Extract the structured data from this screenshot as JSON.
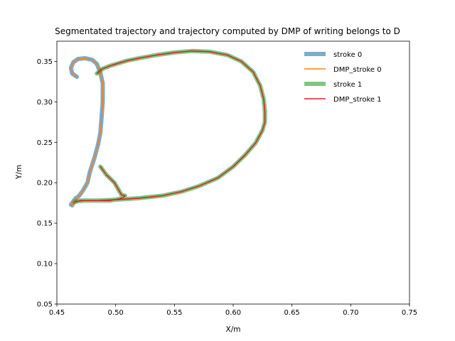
{
  "chart_data": {
    "type": "line",
    "title": "Segmentated trajectory and trajectory computed by DMP of writing belongs to D",
    "xlabel": "X/m",
    "ylabel": "Y/m",
    "xlim": [
      0.45,
      0.75
    ],
    "ylim": [
      0.05,
      0.375
    ],
    "xticks": [
      "0.45",
      "0.50",
      "0.55",
      "0.60",
      "0.65",
      "0.70",
      "0.75"
    ],
    "yticks": [
      "0.05",
      "0.10",
      "0.15",
      "0.20",
      "0.25",
      "0.30",
      "0.35"
    ],
    "grid": false,
    "legend_position": "top-right",
    "series": [
      {
        "name": "stroke 0",
        "color": "#1f77b4",
        "alpha": 0.6,
        "width": "thick",
        "x": [
          0.467,
          0.463,
          0.462,
          0.464,
          0.468,
          0.474,
          0.48,
          0.484,
          0.487,
          0.489,
          0.489,
          0.488,
          0.487,
          0.485,
          0.482,
          0.478,
          0.476,
          0.472,
          0.469,
          0.465,
          0.462,
          0.463,
          0.466
        ],
        "y": [
          0.331,
          0.335,
          0.342,
          0.349,
          0.353,
          0.354,
          0.352,
          0.347,
          0.336,
          0.323,
          0.3,
          0.28,
          0.262,
          0.247,
          0.231,
          0.213,
          0.2,
          0.19,
          0.184,
          0.179,
          0.173,
          0.172,
          0.181
        ]
      },
      {
        "name": "DMP_stroke 0",
        "color": "#ff7f0e",
        "alpha": 1,
        "width": "thin",
        "x": [
          0.467,
          0.463,
          0.462,
          0.464,
          0.468,
          0.474,
          0.48,
          0.484,
          0.487,
          0.489,
          0.489,
          0.488,
          0.487,
          0.485,
          0.482,
          0.478,
          0.476,
          0.472,
          0.469,
          0.465,
          0.462,
          0.463,
          0.466
        ],
        "y": [
          0.331,
          0.335,
          0.342,
          0.349,
          0.353,
          0.354,
          0.352,
          0.347,
          0.336,
          0.323,
          0.3,
          0.28,
          0.262,
          0.247,
          0.231,
          0.213,
          0.2,
          0.19,
          0.184,
          0.179,
          0.173,
          0.172,
          0.181
        ]
      },
      {
        "name": "stroke 1",
        "color": "#2ca02c",
        "alpha": 0.6,
        "width": "thick",
        "x": [
          0.484,
          0.489,
          0.496,
          0.503,
          0.51,
          0.52,
          0.535,
          0.55,
          0.565,
          0.58,
          0.595,
          0.607,
          0.617,
          0.623,
          0.626,
          0.627,
          0.627,
          0.625,
          0.619,
          0.61,
          0.6,
          0.587,
          0.571,
          0.556,
          0.54,
          0.52,
          0.5,
          0.485,
          0.473,
          0.466,
          0.465,
          0.47,
          0.48,
          0.495,
          0.503,
          0.507,
          0.508,
          0.505,
          0.499,
          0.492,
          0.487
        ],
        "y": [
          0.335,
          0.341,
          0.345,
          0.348,
          0.351,
          0.354,
          0.358,
          0.361,
          0.363,
          0.362,
          0.358,
          0.35,
          0.337,
          0.32,
          0.303,
          0.288,
          0.275,
          0.265,
          0.249,
          0.234,
          0.22,
          0.206,
          0.196,
          0.189,
          0.184,
          0.181,
          0.179,
          0.178,
          0.178,
          0.177,
          0.176,
          0.178,
          0.178,
          0.178,
          0.18,
          0.182,
          0.184,
          0.185,
          0.2,
          0.21,
          0.22
        ]
      },
      {
        "name": "DMP_stroke 1",
        "color": "#d62728",
        "alpha": 1,
        "width": "thin",
        "x": [
          0.484,
          0.489,
          0.496,
          0.503,
          0.51,
          0.52,
          0.535,
          0.55,
          0.565,
          0.58,
          0.595,
          0.607,
          0.617,
          0.623,
          0.626,
          0.627,
          0.627,
          0.625,
          0.619,
          0.61,
          0.6,
          0.587,
          0.571,
          0.556,
          0.54,
          0.52,
          0.5,
          0.485,
          0.473,
          0.466,
          0.465,
          0.47,
          0.48,
          0.495,
          0.503,
          0.507,
          0.508,
          0.505,
          0.499,
          0.492,
          0.487
        ],
        "y": [
          0.335,
          0.341,
          0.345,
          0.348,
          0.351,
          0.354,
          0.358,
          0.361,
          0.363,
          0.362,
          0.358,
          0.35,
          0.337,
          0.32,
          0.303,
          0.288,
          0.275,
          0.265,
          0.249,
          0.234,
          0.22,
          0.206,
          0.196,
          0.189,
          0.184,
          0.181,
          0.179,
          0.178,
          0.178,
          0.177,
          0.176,
          0.178,
          0.178,
          0.178,
          0.18,
          0.182,
          0.184,
          0.185,
          0.2,
          0.21,
          0.22
        ]
      }
    ]
  }
}
